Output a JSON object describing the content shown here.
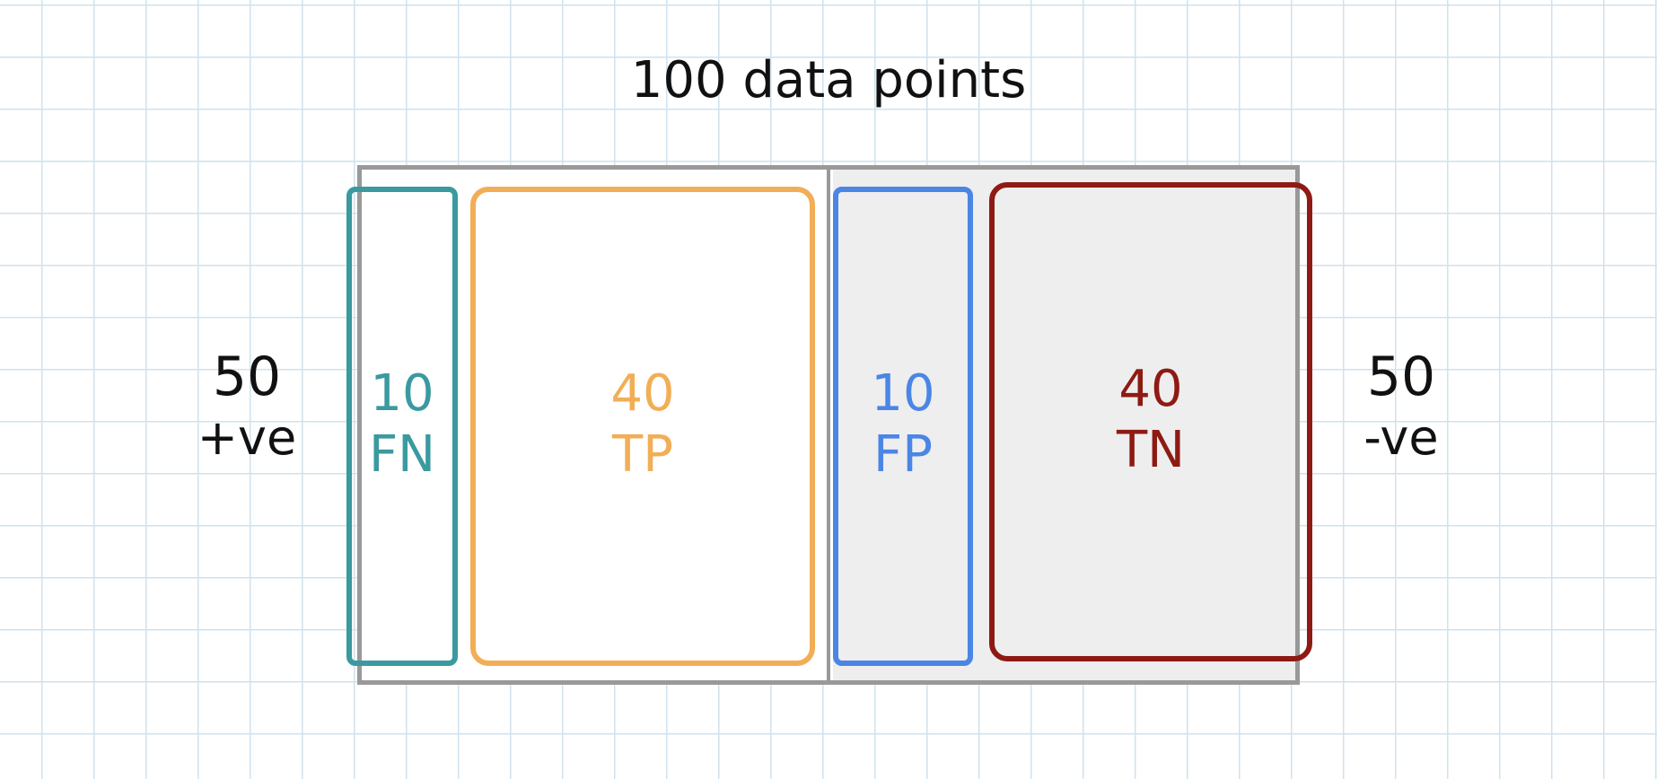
{
  "title": "100 data points",
  "positives": {
    "count": "50",
    "label": "+ve"
  },
  "negatives": {
    "count": "50",
    "label": "-ve"
  },
  "cells": {
    "fn": {
      "count": "10",
      "label": "FN",
      "color": "#3a9aa0"
    },
    "tp": {
      "count": "40",
      "label": "TP",
      "color": "#f2ae56"
    },
    "fp": {
      "count": "10",
      "label": "FP",
      "color": "#4b86e5"
    },
    "tn": {
      "count": "40",
      "label": "TN",
      "color": "#8e1a14"
    }
  },
  "colors": {
    "grid": "#cfe2ee",
    "outer_border": "#999999",
    "negative_fill": "#eeeeee"
  }
}
